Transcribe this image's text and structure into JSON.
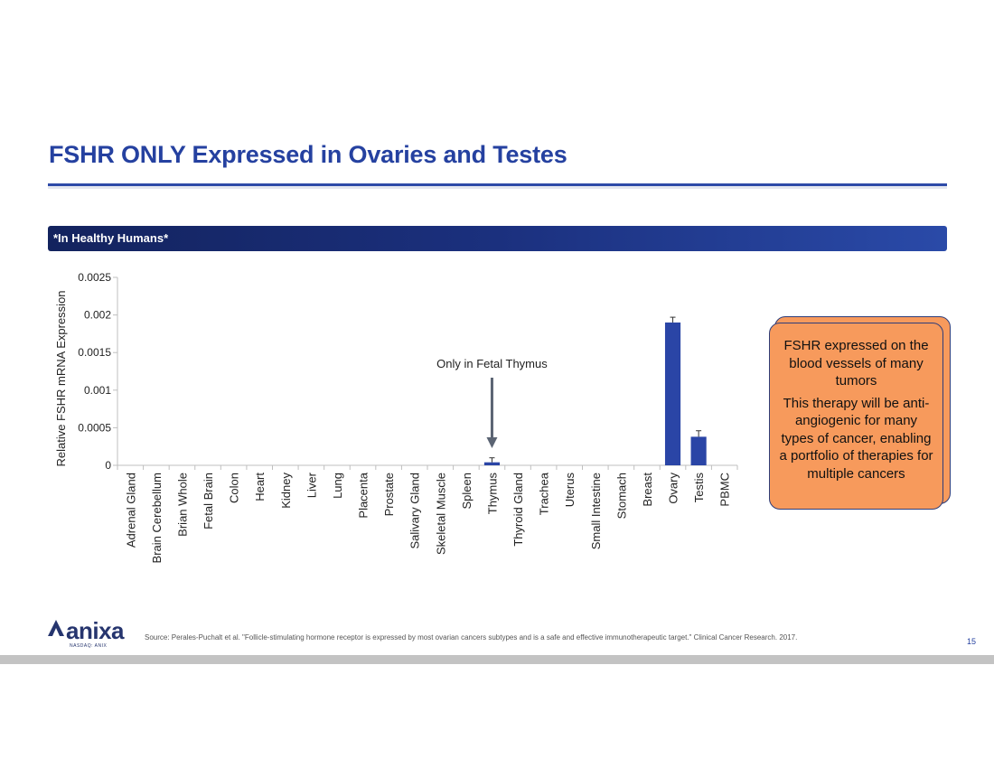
{
  "slide": {
    "title": "FSHR ONLY Expressed in Ovaries and Testes",
    "banner": "*In Healthy Humans*",
    "callout": {
      "p1": "FSHR expressed on the blood vessels of many tumors",
      "p2": "This therapy will be anti-angiogenic for many types of cancer, enabling a portfolio of therapies for multiple cancers"
    },
    "logo": {
      "name": "anixa",
      "sub": "NASDAQ: ANIX"
    },
    "source": "Source: Perales-Puchalt et al.  \"Follicle-stimulating hormone receptor is expressed by most ovarian cancers subtypes and is a safe and effective immunotherapeutic target.\"  Clinical Cancer Research. 2017.",
    "page_number": "15"
  },
  "colors": {
    "title": "#2541a0",
    "bar": "#2a45a6",
    "callout_fill": "#f79a5c",
    "footer": "#c3c3c3"
  },
  "chart_data": {
    "type": "bar",
    "title": "",
    "xlabel": "",
    "ylabel": "Relative FSHR mRNA Expression",
    "ylim": [
      0,
      0.0025
    ],
    "yticks": [
      0,
      0.0005,
      0.001,
      0.0015,
      0.002,
      0.0025
    ],
    "ytick_labels": [
      "0",
      "0.0005",
      "0.001",
      "0.0015",
      "0.002",
      "0.0025"
    ],
    "categories": [
      "Adrenal Gland",
      "Brain Cerebellum",
      "Brian Whole",
      "Fetal Brain",
      "Colon",
      "Heart",
      "Kidney",
      "Liver",
      "Lung",
      "Placenta",
      "Prostate",
      "Salivary Gland",
      "Skeletal Muscle",
      "Spleen",
      "Thymus",
      "Thyroid Gland",
      "Trachea",
      "Uterus",
      "Small Intestine",
      "Stomach",
      "Breast",
      "Ovary",
      "Testis",
      "PBMC"
    ],
    "values": [
      0,
      0,
      0,
      0,
      0,
      0,
      0,
      0,
      0,
      0,
      0,
      0,
      0,
      0,
      4e-05,
      0,
      0,
      0,
      0,
      0,
      0,
      0.0019,
      0.00038,
      0
    ],
    "errors": [
      0,
      0,
      0,
      0,
      0,
      0,
      0,
      0,
      0,
      0,
      0,
      0,
      0,
      0,
      6e-05,
      0,
      0,
      0,
      0,
      0,
      0,
      7e-05,
      8e-05,
      0
    ],
    "annotation": {
      "text": "Only in Fetal Thymus",
      "category": "Thymus"
    },
    "grid": false,
    "legend": "none"
  }
}
